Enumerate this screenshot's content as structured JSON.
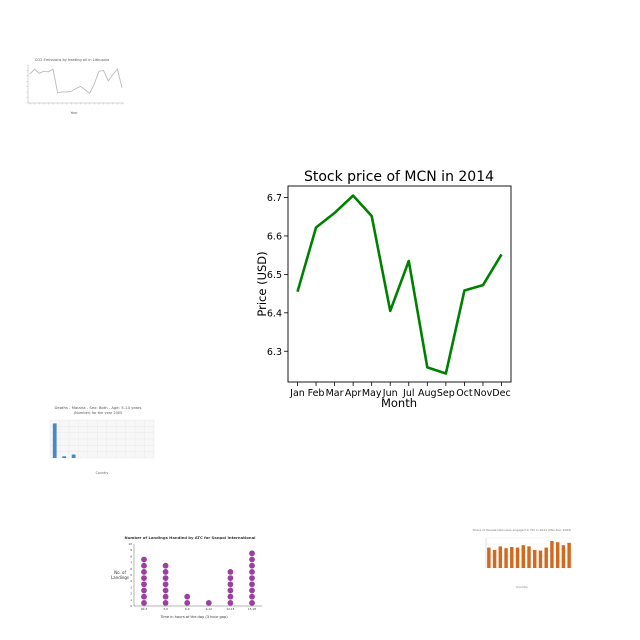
{
  "chart_data": [
    {
      "type": "line",
      "title": "CO2 Emissions by heating oil in Lithuania",
      "xlabel": "Year",
      "ylabel": "",
      "grid": false,
      "color": "#bbbbbb",
      "values": [
        7.2,
        7.9,
        7.3,
        7.6,
        7.5,
        7.9,
        4.5,
        4.6,
        4.6,
        4.7,
        5.1,
        5.4,
        4.9,
        4.4,
        5.8,
        7.6,
        7.7,
        6.2,
        7.1,
        7.9,
        5.2
      ]
    },
    {
      "type": "line",
      "title": "Stock price of MCN in 2014",
      "xlabel": "Month",
      "ylabel": "Price (USD)",
      "categories": [
        "Jan",
        "Feb",
        "Mar",
        "Apr",
        "May",
        "Jun",
        "Jul",
        "Aug",
        "Sep",
        "Oct",
        "Nov",
        "Dec"
      ],
      "series": [
        {
          "values": [
            6.455,
            6.622,
            6.66,
            6.705,
            6.652,
            6.405,
            6.535,
            6.258,
            6.242,
            6.458,
            6.472,
            6.552
          ]
        }
      ],
      "yticks": [
        "6.3",
        "6.4",
        "6.5",
        "6.6",
        "6.7"
      ],
      "ylim": [
        6.22,
        6.73
      ],
      "grid": false,
      "color": "#008000"
    },
    {
      "type": "bar",
      "title": "Deaths - Malaria - Sex: Both - Age: 5-14 years",
      "subtitle": "(Number) for the year 2005",
      "xlabel": "Country",
      "ylabel": "",
      "grid": true,
      "color": "#4a86c8",
      "values": [
        10,
        0.5,
        1,
        0,
        0,
        0,
        0,
        0,
        0,
        0,
        0
      ],
      "ylim": [
        0,
        11
      ]
    },
    {
      "type": "scatter",
      "title": "Number of Landings Handled by ATC for Sanpol International",
      "xlabel": "Time in hours of the day (3 hour gap)",
      "ylabel": "No. of\nLandings",
      "categories": [
        "00-3",
        "3-6",
        "6-9",
        "9-12",
        "12-15",
        "15-18"
      ],
      "values": [
        8,
        7,
        2,
        1,
        6,
        9
      ],
      "yticks": [
        "0",
        "1",
        "2",
        "3",
        "4",
        "5",
        "6",
        "7",
        "8",
        "9",
        "10"
      ],
      "ylim": [
        0,
        10
      ],
      "color": "#9b3fa0"
    },
    {
      "type": "bar",
      "title": "Share of female labourers engaged in HD in 2012 (Mar-Dec 2004)",
      "xlabel": "Country",
      "ylabel": "",
      "grid": true,
      "color": "#d2691e",
      "values": [
        68,
        60,
        72,
        66,
        70,
        68,
        76,
        72,
        60,
        58,
        68,
        90,
        86,
        76,
        84
      ],
      "ylim": [
        0,
        100
      ]
    }
  ]
}
